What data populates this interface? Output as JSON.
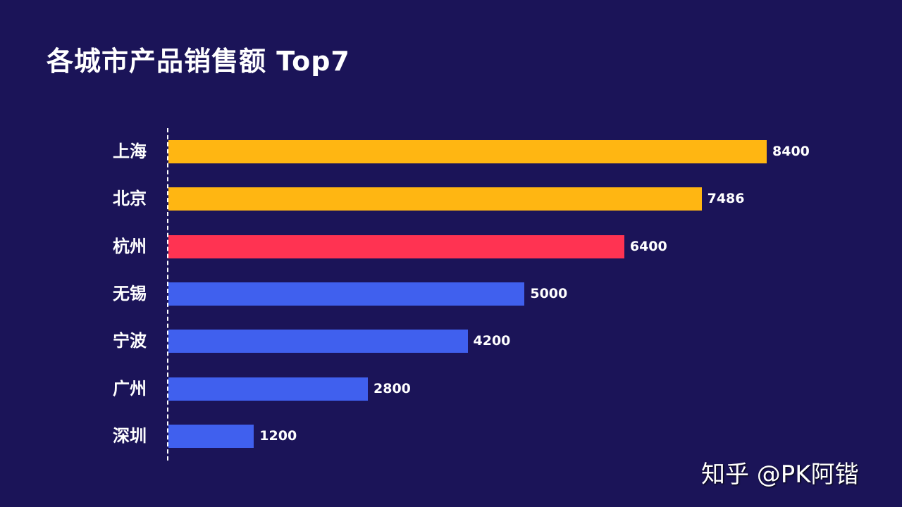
{
  "chart_data": {
    "type": "bar",
    "orientation": "horizontal",
    "title": "各城市产品销售额 Top7",
    "categories": [
      "上海",
      "北京",
      "杭州",
      "无锡",
      "宁波",
      "广州",
      "深圳"
    ],
    "values": [
      8400,
      7486,
      6400,
      5000,
      4200,
      2800,
      1200
    ],
    "value_labels": [
      "8400",
      "7486",
      "6400",
      "5000",
      "4200",
      "2800",
      "1200"
    ],
    "colors": [
      "#ffb612",
      "#ffb612",
      "#ff3352",
      "#4060ee",
      "#4060ee",
      "#4060ee",
      "#4060ee"
    ],
    "xlim": [
      0,
      8400
    ],
    "grid": false,
    "legend": "none"
  },
  "watermark": "知乎 @PK阿锴",
  "background": "#1b1458"
}
